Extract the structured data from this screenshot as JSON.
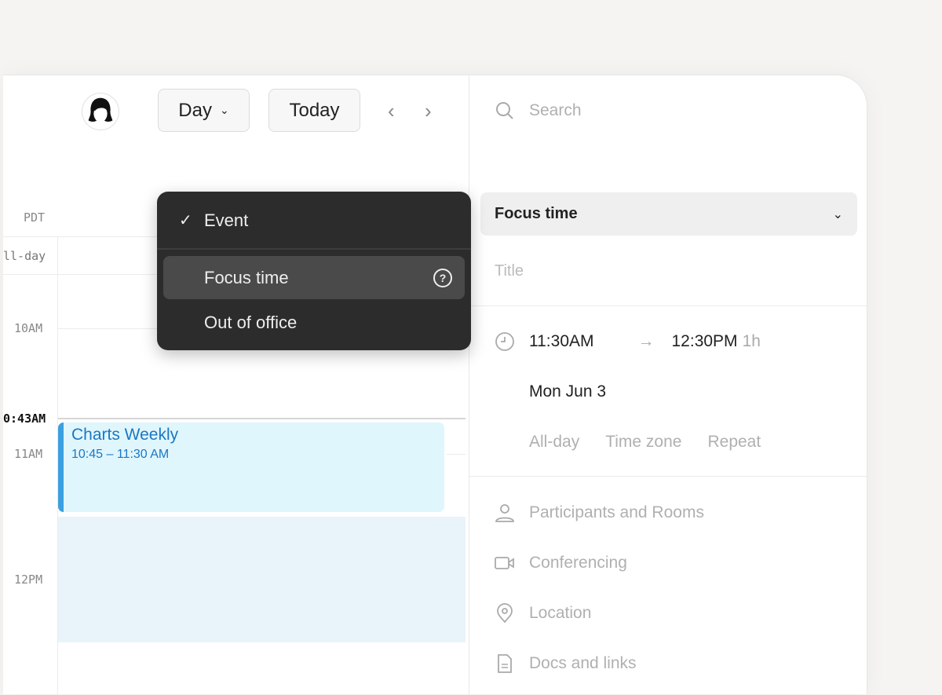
{
  "toolbar": {
    "view_label": "Day",
    "today_label": "Today",
    "prev_icon": "chevron-left-icon",
    "next_icon": "chevron-right-icon"
  },
  "calendar": {
    "timezone": "PDT",
    "allday_label": "ll-day",
    "hours": [
      "10AM",
      "11AM",
      "12PM"
    ],
    "current_time": "0:43AM",
    "event": {
      "title": "Charts Weekly",
      "time": "10:45 – 11:30 AM",
      "color": "#3b9fe0",
      "bg": "#e0f6fd"
    },
    "focus_block_bg": "#e8f3fa"
  },
  "menu": {
    "items": [
      {
        "label": "Event",
        "checked": true
      },
      {
        "label": "Focus time",
        "highlighted": true,
        "help_icon": "?"
      },
      {
        "label": "Out of office"
      }
    ]
  },
  "panel": {
    "search_placeholder": "Search",
    "type_select": "Focus time",
    "title_placeholder": "Title",
    "start_time": "11:30AM",
    "end_time": "12:30PM",
    "duration": "1h",
    "date": "Mon Jun 3",
    "options": [
      "All-day",
      "Time zone",
      "Repeat"
    ],
    "fields": [
      "Participants and Rooms",
      "Conferencing",
      "Location",
      "Docs and links"
    ]
  }
}
